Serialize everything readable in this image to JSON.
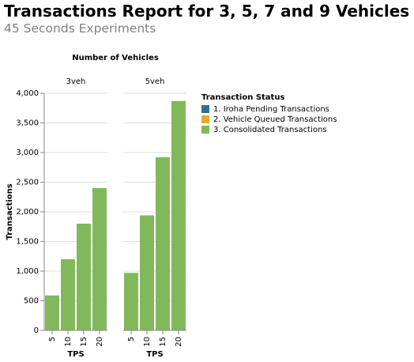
{
  "title": "Transactions Report for 3, 5, 7 and 9 Vehicles",
  "subtitle": "45 Seconds Experiments",
  "chart_data": {
    "type": "bar",
    "stacked": true,
    "facet_title": "Number of Vehicles",
    "facets": [
      {
        "label": "3veh",
        "categories": [
          "5",
          "10",
          "15",
          "20"
        ],
        "series": [
          {
            "name": "1. Iroha Pending Transactions",
            "values": [
              0,
              0,
              0,
              0
            ]
          },
          {
            "name": "2. Vehicle Queued Transactions",
            "values": [
              0,
              0,
              0,
              0
            ]
          },
          {
            "name": "3. Consolidated Transactions",
            "values": [
              590,
              1200,
              1800,
              2400
            ]
          }
        ]
      },
      {
        "label": "5veh",
        "categories": [
          "5",
          "10",
          "15",
          "20"
        ],
        "series": [
          {
            "name": "1. Iroha Pending Transactions",
            "values": [
              0,
              0,
              0,
              0
            ]
          },
          {
            "name": "2. Vehicle Queued Transactions",
            "values": [
              0,
              0,
              0,
              0
            ]
          },
          {
            "name": "3. Consolidated Transactions",
            "values": [
              970,
              1940,
              2920,
              3870
            ]
          }
        ]
      }
    ],
    "xlabel": "TPS",
    "ylabel": "Transactions",
    "ylim": [
      0,
      4000
    ],
    "yticks": [
      0,
      500,
      1000,
      1500,
      2000,
      2500,
      3000,
      3500,
      4000
    ],
    "ytick_labels": [
      "0",
      "500",
      "1,000",
      "1,500",
      "2,000",
      "2,500",
      "3,000",
      "3,500",
      "4,000"
    ],
    "grid": true,
    "legend": {
      "title": "Transaction Status",
      "position": "right",
      "entries": [
        {
          "label": "1. Iroha Pending Transactions",
          "color": "#2f6f9b"
        },
        {
          "label": "2. Vehicle Queued Transactions",
          "color": "#e8aa25"
        },
        {
          "label": "3. Consolidated Transactions",
          "color": "#82b85c"
        }
      ]
    }
  }
}
